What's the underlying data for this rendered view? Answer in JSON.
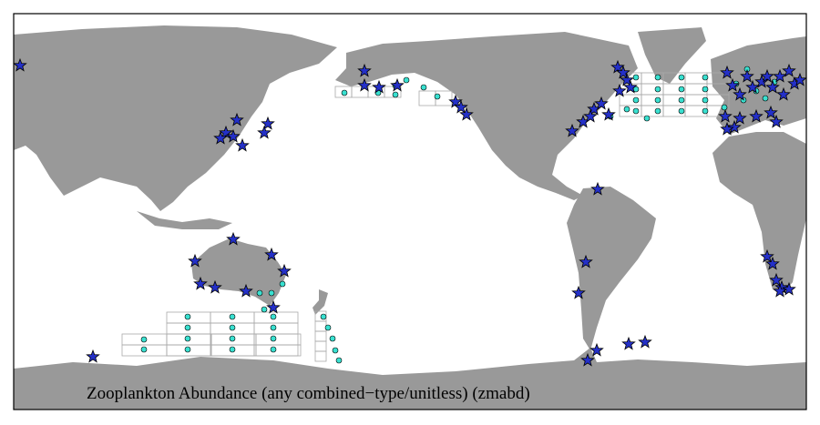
{
  "caption": "Zooplankton Abundance (any combined−type/unitless) (zmabd)"
}
